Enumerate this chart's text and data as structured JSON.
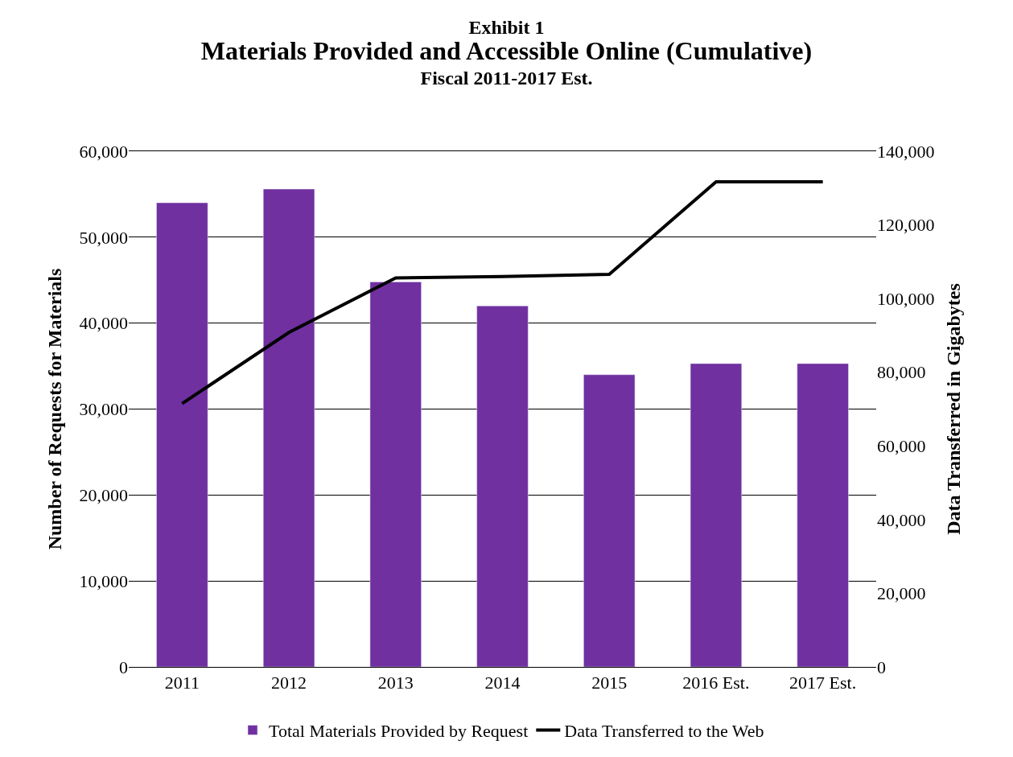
{
  "chart_data": {
    "type": "bar",
    "title": "Exhibit 1",
    "subtitle": "Materials Provided and Accessible Online (Cumulative)\nFiscal 2011-2017 Est.",
    "categories": [
      "2011",
      "2012",
      "2013",
      "2014",
      "2015",
      "2016 Est.",
      "2017 Est."
    ],
    "series": [
      {
        "name": "Total Materials Provided by Request",
        "color": "#7030a0",
        "values": [
          54000,
          55600,
          44800,
          42000,
          34000,
          35300,
          35300
        ]
      },
      {
        "name": "Data Transferred to the Web",
        "type": "line",
        "axis": "y2",
        "color": "#000000",
        "values": [
          71500,
          90800,
          105600,
          106000,
          106600,
          131700,
          131700
        ]
      }
    ],
    "ylabel": "Number of Requests for Materials",
    "y2label": "Data Transferred in Gigabytes",
    "ylim": [
      0,
      60000
    ],
    "yticks": [
      {
        "value": 0,
        "label": "0"
      },
      {
        "value": 10000,
        "label": "10,000"
      },
      {
        "value": 20000,
        "label": "20,000"
      },
      {
        "value": 30000,
        "label": "30,000"
      },
      {
        "value": 40000,
        "label": "40,000"
      },
      {
        "value": 50000,
        "label": "50,000"
      },
      {
        "value": 60000,
        "label": "60,000"
      }
    ],
    "y2lim": [
      0,
      140000
    ],
    "y2ticks": [
      {
        "value": 0,
        "label": "0"
      },
      {
        "value": 20000,
        "label": "20,000"
      },
      {
        "value": 40000,
        "label": "40,000"
      },
      {
        "value": 60000,
        "label": "60,000"
      },
      {
        "value": 80000,
        "label": "80,000"
      },
      {
        "value": 100000,
        "label": "100,000"
      },
      {
        "value": 120000,
        "label": "120,000"
      },
      {
        "value": 140000,
        "label": "140,000"
      }
    ],
    "grid": "y",
    "legend": "bottom",
    "marker": "none",
    "line_style": "solid"
  }
}
